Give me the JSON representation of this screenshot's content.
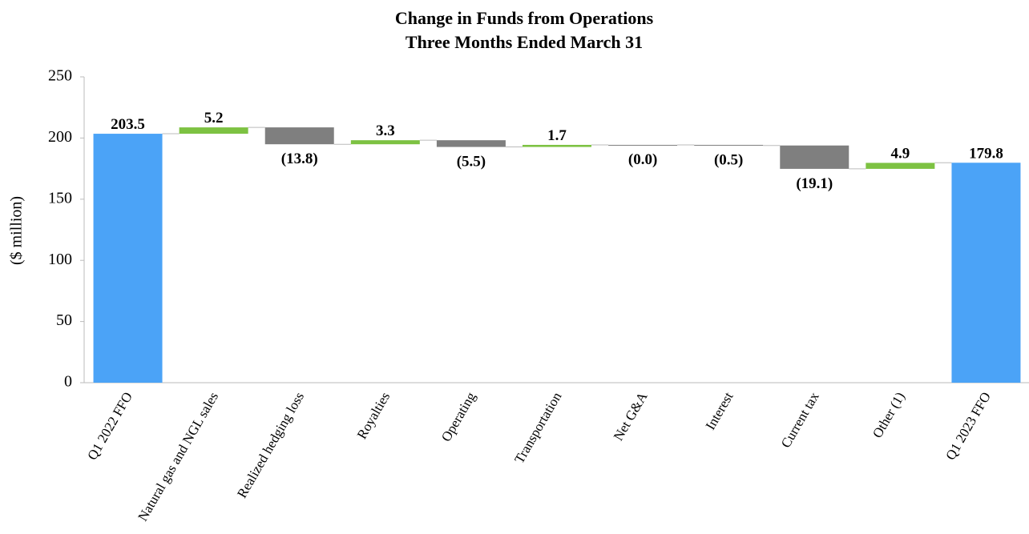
{
  "chart_data": {
    "type": "waterfall",
    "title": "Change in Funds from Operations",
    "subtitle": "Three Months Ended March 31",
    "y_label": "($ million)",
    "categories": [
      "Q1 2022 FFO",
      "Natural gas and NGL sales",
      "Realized hedging loss",
      "Royalties",
      "Operating",
      "Transportation",
      "Net G&A",
      "Interest",
      "Current tax",
      "Other (1)",
      "Q1 2023 FFO"
    ],
    "measure": [
      "absolute",
      "relative",
      "relative",
      "relative",
      "relative",
      "relative",
      "relative",
      "relative",
      "relative",
      "relative",
      "absolute"
    ],
    "values": [
      203.5,
      5.2,
      -13.8,
      3.3,
      -5.5,
      1.7,
      -0.0,
      -0.5,
      -19.1,
      4.9,
      179.8
    ],
    "value_labels": [
      "203.5",
      "5.2",
      "(13.8)",
      "3.3",
      "(5.5)",
      "1.7",
      "(0.0)",
      "(0.5)",
      "(19.1)",
      "4.9",
      "179.8"
    ],
    "colors": {
      "total": "#4ba3f7",
      "increase": "#7dc242",
      "decrease": "#7f7f7f"
    },
    "ylim": [
      0,
      250
    ],
    "yticks": [
      0,
      50,
      100,
      150,
      200,
      250
    ],
    "grid": false
  }
}
